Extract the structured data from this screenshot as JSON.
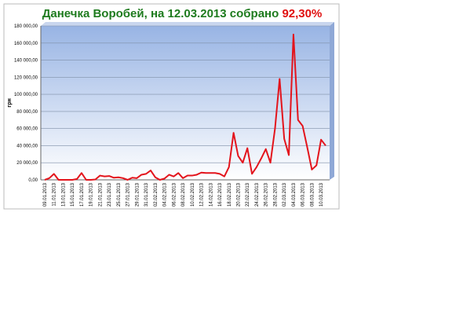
{
  "chart_data": {
    "type": "line",
    "title": "Данечка Воробей, на 12.03.2013 собрано ",
    "title_highlight": "92,30%",
    "title_color": "#1e7b1e",
    "title_highlight_color": "#e01010",
    "y_label": "грн",
    "categories": [
      "09.01.2013",
      null,
      "11.01.2013",
      null,
      "13.01.2013",
      null,
      "15.01.2013",
      null,
      "17.01.2013",
      null,
      "19.01.2013",
      null,
      "21.01.2013",
      null,
      "23.01.2013",
      null,
      "25.01.2013",
      null,
      "27.01.2013",
      null,
      "29.01.2013",
      null,
      "31.01.2013",
      null,
      "02.02.2013",
      null,
      "04.02.2013",
      null,
      "06.02.2013",
      null,
      "08.02.2013",
      null,
      "10.02.2013",
      null,
      "12.02.2013",
      null,
      "14.02.2013",
      null,
      "16.02.2013",
      null,
      "18.02.2013",
      null,
      "20.02.2013",
      null,
      "22.02.2013",
      null,
      "24.02.2013",
      null,
      "26.02.2013",
      null,
      "28.02.2013",
      null,
      "02.03.2013",
      null,
      "04.03.2013",
      null,
      "06.03.2013",
      null,
      "08.03.2013",
      null,
      "10.03.2013",
      null
    ],
    "values": [
      0,
      2000,
      7000,
      0,
      0,
      0,
      0,
      1000,
      8000,
      0,
      0,
      500,
      5000,
      4000,
      4500,
      2500,
      3000,
      2000,
      0,
      2500,
      2000,
      6000,
      7000,
      11000,
      3000,
      0,
      1500,
      6000,
      4000,
      8000,
      2000,
      5000,
      5000,
      6000,
      8500,
      8000,
      8000,
      8000,
      7000,
      4000,
      15000,
      55000,
      28000,
      20000,
      37000,
      7000,
      15000,
      25000,
      36000,
      20000,
      60000,
      118000,
      48000,
      29000,
      170000,
      70000,
      63000,
      38000,
      12000,
      17000,
      47000,
      40000
    ],
    "color": "#e3141c",
    "ylim": [
      0,
      180000
    ],
    "yticks": [
      {
        "value": 0,
        "label": "0,00"
      },
      {
        "value": 20000,
        "label": "20 000,00"
      },
      {
        "value": 40000,
        "label": "40 000,00"
      },
      {
        "value": 60000,
        "label": "60 000,00"
      },
      {
        "value": 80000,
        "label": "80 000,00"
      },
      {
        "value": 100000,
        "label": "100 000,00"
      },
      {
        "value": 120000,
        "label": "120 000,00"
      },
      {
        "value": 140000,
        "label": "140 000,00"
      },
      {
        "value": 160000,
        "label": "160 000,00"
      },
      {
        "value": 180000,
        "label": "180 000,00"
      }
    ],
    "grid": true
  }
}
